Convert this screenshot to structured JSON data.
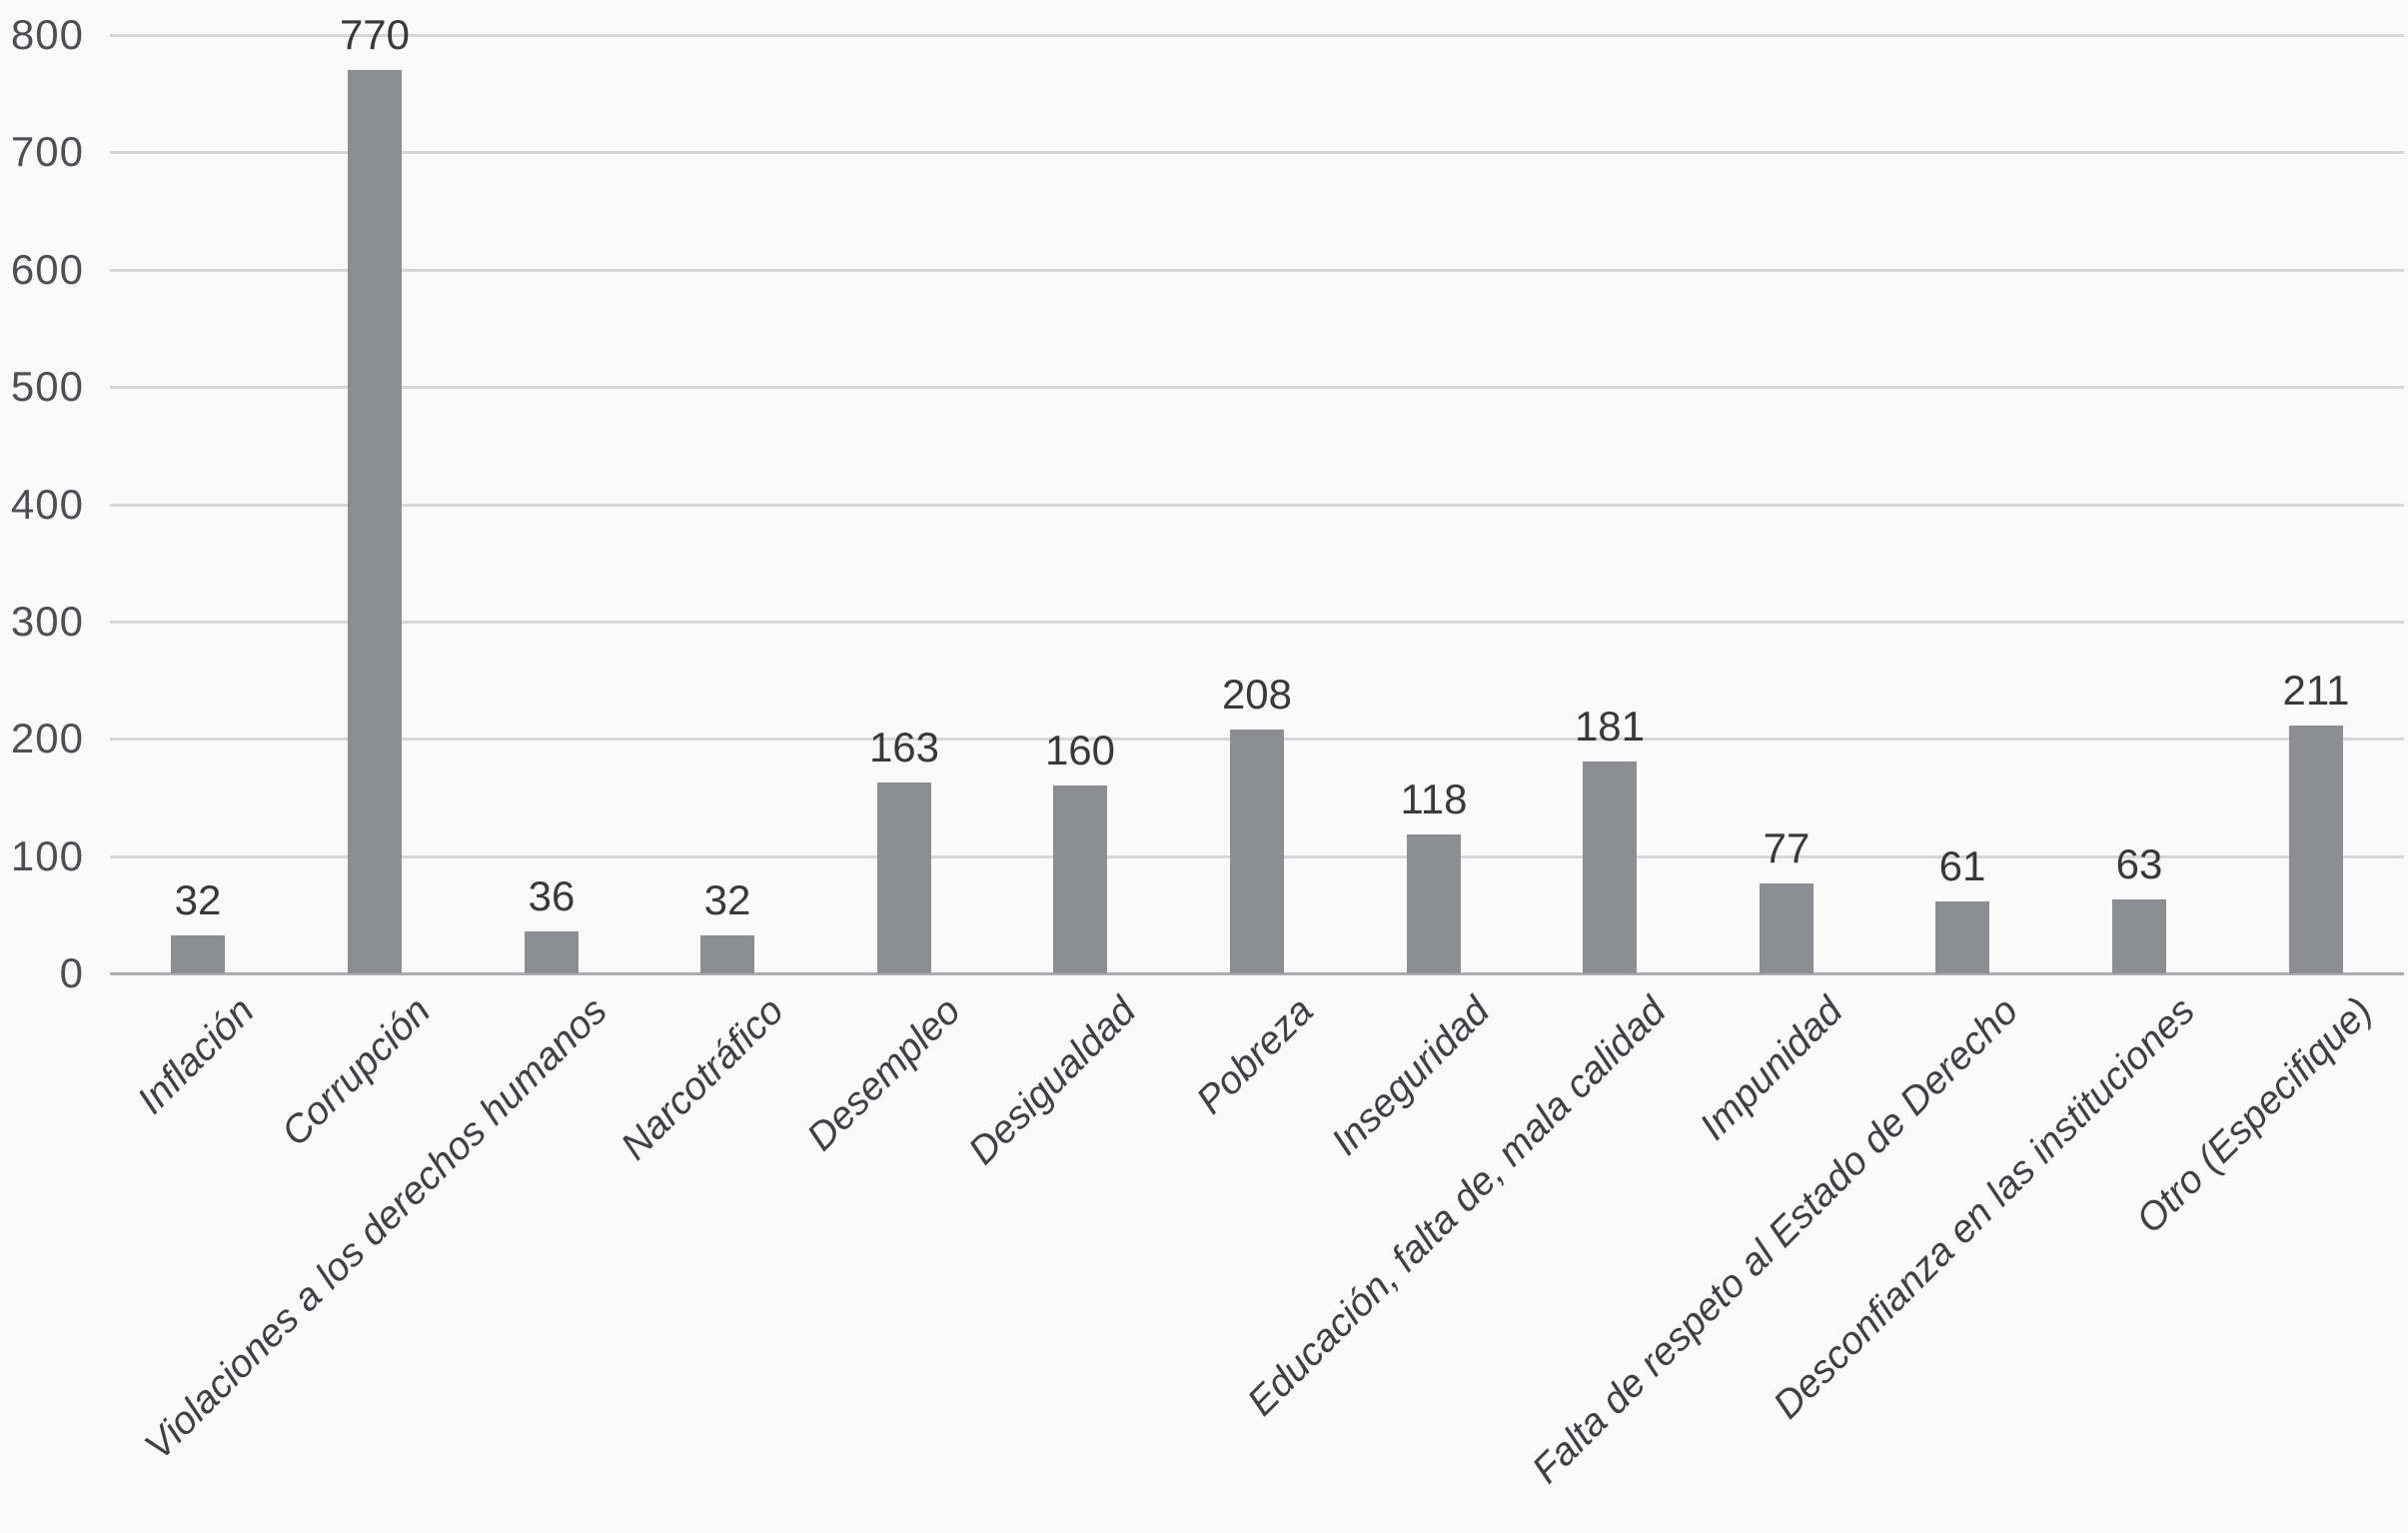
{
  "chart_data": {
    "type": "bar",
    "title": "",
    "xlabel": "",
    "ylabel": "",
    "categories": [
      "Inflación",
      "Corrupción",
      "Violaciones a los derechos humanos",
      "Narcotráfico",
      "Desempleo",
      "Desigualdad",
      "Pobreza",
      "Inseguridad",
      "Educación, falta de, mala calidad",
      "Impunidad",
      "Falta de respeto al Estado de Derecho",
      "Desconfianza en las instituciones",
      "Otro (Especifique)"
    ],
    "values": [
      32,
      770,
      36,
      32,
      163,
      160,
      208,
      118,
      181,
      77,
      61,
      63,
      211
    ],
    "value_labels": [
      "32",
      "770",
      "36",
      "32",
      "163",
      "160",
      "208",
      "118",
      "181",
      "77",
      "61",
      "63",
      "211"
    ],
    "ylim": [
      0,
      800
    ],
    "y_ticks": [
      0,
      100,
      200,
      300,
      400,
      500,
      600,
      700,
      800
    ],
    "grid": "horizontal",
    "legend": "none",
    "data_labels": "above-bars",
    "category_label_rotation_deg": 45,
    "colors": {
      "bar": "#8d8e91",
      "value_label": "#39393b",
      "axis_tick_label": "#4f4f53",
      "category_label": "#3f3f44",
      "gridline": "#d7d7d9",
      "axis_line": "#acacb0",
      "background": "#fafafa"
    }
  }
}
